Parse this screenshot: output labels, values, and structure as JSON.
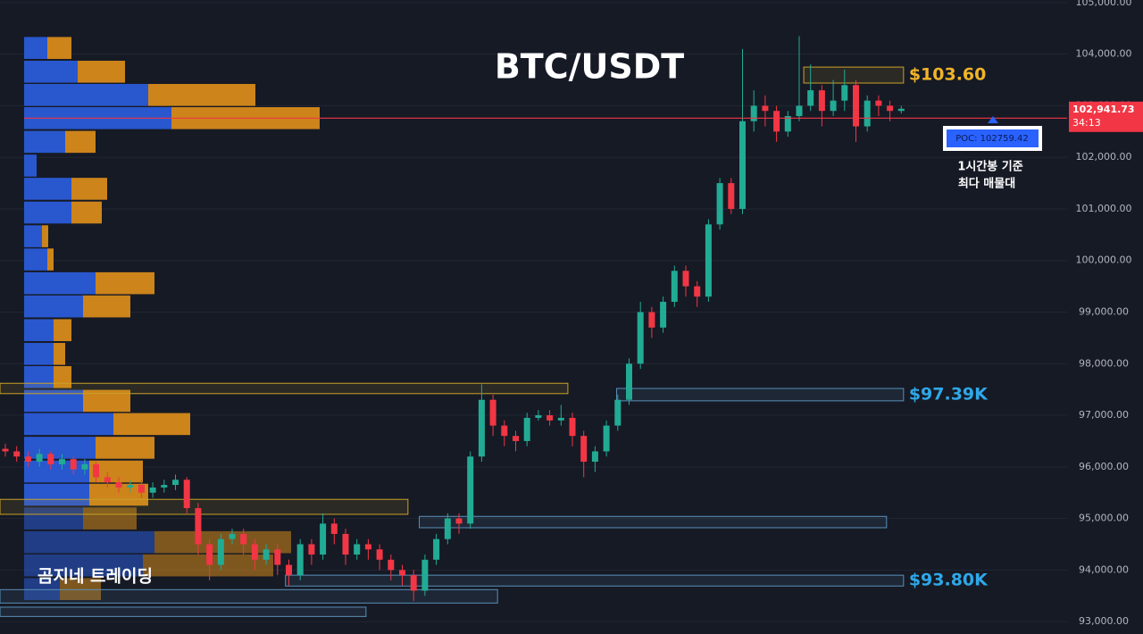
{
  "chart_data": {
    "type": "candlestick",
    "title": "BTC/USDT",
    "watermark": "곰지네 트레이딩",
    "up_color": "#22ab94",
    "down_color": "#f23645",
    "ylim": [
      92760,
      105050
    ],
    "yticks": [
      {
        "value": 93000,
        "label": "93,000.00"
      },
      {
        "value": 94000,
        "label": "94,000.00"
      },
      {
        "value": 95000,
        "label": "95,000.00"
      },
      {
        "value": 96000,
        "label": "96,000.00"
      },
      {
        "value": 97000,
        "label": "97,000.00"
      },
      {
        "value": 98000,
        "label": "98,000.00"
      },
      {
        "value": 99000,
        "label": "99,000.00"
      },
      {
        "value": 100000,
        "label": "100,000.00"
      },
      {
        "value": 101000,
        "label": "101,000.00"
      },
      {
        "value": 102000,
        "label": "102,000.00"
      },
      {
        "value": 103000,
        "label": "103,000.00"
      },
      {
        "value": 104000,
        "label": "104,000.00"
      },
      {
        "value": 105000,
        "label": "105,000.00"
      }
    ],
    "grid": true,
    "open": [
      96350,
      96300,
      96200,
      96100,
      96250,
      96050,
      96150,
      95950,
      96050,
      95800,
      95700,
      95600,
      95650,
      95500,
      95600,
      95650,
      95750,
      95200,
      94500,
      94100,
      94600,
      94700,
      94500,
      94200,
      94400,
      94100,
      93900,
      94500,
      94300,
      94900,
      94700,
      94300,
      94500,
      94400,
      94200,
      94000,
      93900,
      93600,
      94200,
      94600,
      95000,
      94900,
      96200,
      97300,
      96800,
      96600,
      96500,
      96950,
      97000,
      96900,
      96950,
      96600,
      96100,
      96300,
      96800,
      97300,
      98000,
      99000,
      98700,
      99200,
      99800,
      99500,
      99300,
      100700,
      101500,
      101000,
      102700,
      103000,
      102900,
      102500,
      102800,
      103000,
      103300,
      102900,
      103100,
      103400,
      102600,
      103100,
      103000,
      102900
    ],
    "high": [
      96450,
      96400,
      96300,
      96350,
      96300,
      96250,
      96200,
      96150,
      96100,
      95900,
      95800,
      95750,
      95750,
      95700,
      95750,
      95850,
      95800,
      95300,
      94600,
      94700,
      94800,
      94800,
      94600,
      94500,
      94500,
      94200,
      94600,
      94600,
      95100,
      95000,
      94800,
      94600,
      94600,
      94500,
      94300,
      94100,
      94000,
      94300,
      94700,
      95100,
      95100,
      96300,
      97600,
      97400,
      96900,
      96700,
      97050,
      97100,
      97100,
      97200,
      97050,
      96700,
      96400,
      96900,
      97400,
      98100,
      99200,
      99100,
      99300,
      99900,
      99900,
      99600,
      100800,
      101600,
      101600,
      104100,
      103300,
      103200,
      103000,
      102900,
      104350,
      103800,
      103400,
      103500,
      103700,
      103500,
      103200,
      103200,
      103100,
      103000
    ],
    "low": [
      96200,
      96100,
      96000,
      96000,
      95950,
      95950,
      95850,
      95850,
      95700,
      95600,
      95500,
      95500,
      95400,
      95400,
      95500,
      95550,
      95100,
      94300,
      93800,
      94000,
      94500,
      94300,
      94000,
      94100,
      93900,
      93700,
      93800,
      94100,
      94200,
      94500,
      94100,
      94200,
      94200,
      94000,
      93800,
      93700,
      93400,
      93500,
      94100,
      94500,
      94700,
      94800,
      96100,
      96600,
      96400,
      96300,
      96400,
      96900,
      96800,
      96800,
      96400,
      95800,
      95900,
      96200,
      96700,
      97200,
      97900,
      98500,
      98600,
      99100,
      99300,
      99100,
      99200,
      100600,
      100900,
      100900,
      102500,
      102600,
      102300,
      102400,
      102700,
      102900,
      102600,
      102800,
      102900,
      102300,
      102500,
      102800,
      102700,
      102850
    ],
    "close": [
      96300,
      96200,
      96100,
      96250,
      96050,
      96150,
      95950,
      96050,
      95800,
      95700,
      95600,
      95650,
      95500,
      95600,
      95650,
      95750,
      95200,
      94500,
      94100,
      94600,
      94700,
      94500,
      94200,
      94400,
      94100,
      93900,
      94500,
      94300,
      94900,
      94700,
      94300,
      94500,
      94400,
      94200,
      94000,
      93900,
      93600,
      94200,
      94600,
      95000,
      94900,
      96200,
      97300,
      96800,
      96600,
      96500,
      96950,
      97000,
      96900,
      96950,
      96600,
      96100,
      96300,
      96800,
      97300,
      98000,
      99000,
      98700,
      99200,
      99800,
      99500,
      99300,
      100700,
      101500,
      101000,
      102700,
      103000,
      102900,
      102500,
      102800,
      103000,
      103300,
      102900,
      103100,
      103400,
      102600,
      103100,
      103000,
      102900,
      102942
    ],
    "profile": {
      "prices": [
        104120,
        103660,
        103210,
        102760,
        102300,
        101840,
        101390,
        100930,
        100470,
        100020,
        99560,
        99110,
        98650,
        98190,
        97740,
        97280,
        96830,
        96370,
        95910,
        95460,
        95000,
        94540,
        94090,
        93630
      ],
      "buy": [
        26,
        60,
        139,
        165,
        46,
        14,
        53,
        53,
        20,
        26,
        80,
        66,
        33,
        33,
        33,
        66,
        100,
        80,
        73,
        73,
        66,
        146,
        133,
        40
      ],
      "sell": [
        27,
        53,
        120,
        166,
        34,
        0,
        40,
        34,
        7,
        7,
        66,
        53,
        20,
        13,
        20,
        53,
        86,
        66,
        60,
        66,
        60,
        153,
        146,
        46
      ],
      "buy_color": "#2a5bd7",
      "sell_color": "#d68a1a"
    },
    "zones": [
      {
        "low": 103440,
        "high": 103750,
        "from": 70.4,
        "to": 79.2,
        "color": "#c9a227",
        "label": "$103.60",
        "label_color": "#f0b429"
      },
      {
        "low": 97420,
        "high": 97620,
        "from": -0.5,
        "to": 49.6,
        "color": "#c9a227"
      },
      {
        "low": 97280,
        "high": 97520,
        "from": 53.9,
        "to": 79.2,
        "color": "#5a8fb8",
        "label": "$97.39K",
        "label_color": "#2fa8e8"
      },
      {
        "low": 95080,
        "high": 95370,
        "from": -0.5,
        "to": 35.5,
        "color": "#c9a227"
      },
      {
        "low": 94820,
        "high": 95040,
        "from": 36.5,
        "to": 77.7,
        "color": "#5a8fb8"
      },
      {
        "low": 93690,
        "high": 93900,
        "from": 24.7,
        "to": 79.2,
        "color": "#5a8fb8",
        "label": "$93.80K",
        "label_color": "#2fa8e8"
      },
      {
        "low": 93360,
        "high": 93620,
        "from": -0.5,
        "to": 43.4,
        "color": "#5a8fb8"
      },
      {
        "low": 93100,
        "high": 93280,
        "from": -0.5,
        "to": 31.8,
        "color": "#5a8fb8"
      }
    ],
    "poc": 102759.42,
    "poc_label": "POC: 102759.42",
    "poc_note": [
      "1시간봉 기준",
      "최다 매물대"
    ],
    "last_price": 102941.73,
    "last_price_label": "102,941.73",
    "countdown": "34:13"
  }
}
